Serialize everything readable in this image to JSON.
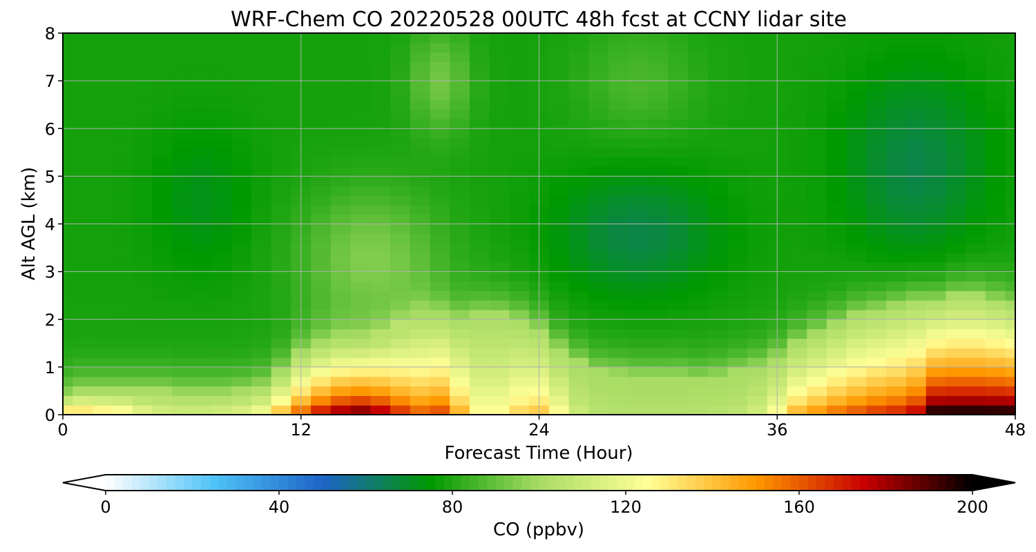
{
  "chart_data": {
    "type": "heatmap",
    "title": "WRF-Chem CO  20220528 00UTC 48h fcst at CCNY lidar site",
    "xlabel": "Forecast Time (Hour)",
    "ylabel": "Alt AGL (km)",
    "xlim": [
      0,
      48
    ],
    "ylim": [
      0,
      8
    ],
    "xticks": [
      0,
      12,
      24,
      36,
      48
    ],
    "yticks": [
      0,
      1,
      2,
      3,
      4,
      5,
      6,
      7,
      8
    ],
    "grid": true,
    "x_hours": [
      0,
      1,
      2,
      3,
      4,
      5,
      6,
      7,
      8,
      9,
      10,
      11,
      12,
      13,
      14,
      15,
      16,
      17,
      18,
      19,
      20,
      21,
      22,
      23,
      24,
      25,
      26,
      27,
      28,
      29,
      30,
      31,
      32,
      33,
      34,
      35,
      36,
      37,
      38,
      39,
      40,
      41,
      42,
      43,
      44,
      45,
      46,
      47,
      48
    ],
    "bl_top_km": [
      0.4,
      0.5,
      0.5,
      0.5,
      0.5,
      0.5,
      0.45,
      0.45,
      0.45,
      0.5,
      0.6,
      0.9,
      1.3,
      1.5,
      1.6,
      1.6,
      1.7,
      1.9,
      2.1,
      2.1,
      2.0,
      2.1,
      2.1,
      2.0,
      1.8,
      1.4,
      1.1,
      0.9,
      0.85,
      0.8,
      0.8,
      0.8,
      0.75,
      0.8,
      0.9,
      1.0,
      1.2,
      1.5,
      1.7,
      1.9,
      2.1,
      2.2,
      2.3,
      2.4,
      2.4,
      2.5,
      2.5,
      2.4,
      2.3
    ],
    "surface_co_ppbv": [
      152,
      148,
      143,
      138,
      125,
      118,
      116,
      116,
      118,
      122,
      130,
      150,
      170,
      185,
      195,
      200,
      192,
      178,
      168,
      172,
      150,
      130,
      130,
      140,
      145,
      130,
      112,
      106,
      104,
      104,
      104,
      104,
      105,
      106,
      108,
      115,
      130,
      150,
      158,
      165,
      170,
      175,
      178,
      185,
      210,
      210,
      210,
      210,
      210
    ],
    "colorbar": {
      "label": "CO  (ppbv)",
      "min": 0,
      "max": 200,
      "ticks": [
        0,
        40,
        80,
        120,
        160,
        200
      ],
      "extend": "both",
      "colors": [
        "#ffffff",
        "#4fc3f7",
        "#1e63c8",
        "#009900",
        "#a8dc64",
        "#ffff96",
        "#ff9900",
        "#c80000",
        "#000000"
      ]
    }
  }
}
